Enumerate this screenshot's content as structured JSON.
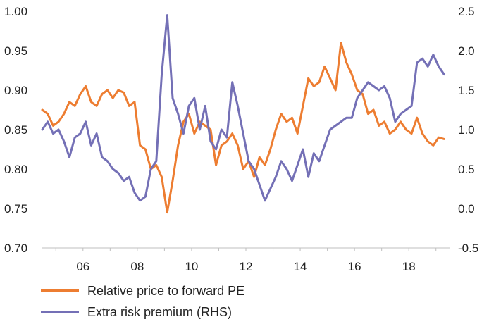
{
  "chart_data": {
    "type": "line",
    "x_ticks": [
      {
        "x": 2006,
        "label": "06"
      },
      {
        "x": 2008,
        "label": "08"
      },
      {
        "x": 2010,
        "label": "10"
      },
      {
        "x": 2012,
        "label": "12"
      },
      {
        "x": 2014,
        "label": "14"
      },
      {
        "x": 2016,
        "label": "16"
      },
      {
        "x": 2018,
        "label": "18"
      }
    ],
    "xlim": [
      2004.5,
      2019.5
    ],
    "y_left": {
      "ylim": [
        0.7,
        1.0
      ],
      "ticks": [
        "1.00",
        "0.95",
        "0.90",
        "0.85",
        "0.80",
        "0.75",
        "0.70"
      ]
    },
    "y_right": {
      "ylim": [
        -0.5,
        2.5
      ],
      "ticks": [
        "2.5",
        "2.0",
        "1.5",
        "1.0",
        "0.5",
        "0.0",
        "-0.5"
      ]
    },
    "grid": false,
    "legend_position": "bottom-left",
    "series": [
      {
        "name": "Relative price to forward PE",
        "axis": "left",
        "color": "#ed7d31",
        "x": [
          2004.5,
          2004.7,
          2004.9,
          2005.1,
          2005.3,
          2005.5,
          2005.7,
          2005.9,
          2006.1,
          2006.3,
          2006.5,
          2006.7,
          2006.9,
          2007.1,
          2007.3,
          2007.5,
          2007.7,
          2007.9,
          2008.1,
          2008.3,
          2008.5,
          2008.7,
          2008.9,
          2009.1,
          2009.3,
          2009.5,
          2009.7,
          2009.9,
          2010.1,
          2010.3,
          2010.5,
          2010.7,
          2010.9,
          2011.1,
          2011.3,
          2011.5,
          2011.7,
          2011.9,
          2012.1,
          2012.3,
          2012.5,
          2012.7,
          2012.9,
          2013.1,
          2013.3,
          2013.5,
          2013.7,
          2013.9,
          2014.1,
          2014.3,
          2014.5,
          2014.7,
          2014.9,
          2015.1,
          2015.3,
          2015.5,
          2015.7,
          2015.9,
          2016.1,
          2016.3,
          2016.5,
          2016.7,
          2016.9,
          2017.1,
          2017.3,
          2017.5,
          2017.7,
          2017.9,
          2018.1,
          2018.3,
          2018.5,
          2018.7,
          2018.9,
          2019.1,
          2019.3
        ],
        "values": [
          0.875,
          0.87,
          0.855,
          0.86,
          0.87,
          0.885,
          0.88,
          0.895,
          0.905,
          0.885,
          0.88,
          0.895,
          0.9,
          0.89,
          0.9,
          0.897,
          0.88,
          0.885,
          0.83,
          0.825,
          0.8,
          0.805,
          0.79,
          0.745,
          0.785,
          0.83,
          0.86,
          0.87,
          0.845,
          0.86,
          0.855,
          0.85,
          0.805,
          0.83,
          0.835,
          0.845,
          0.83,
          0.8,
          0.81,
          0.79,
          0.815,
          0.805,
          0.825,
          0.85,
          0.87,
          0.86,
          0.865,
          0.845,
          0.88,
          0.915,
          0.905,
          0.91,
          0.93,
          0.915,
          0.9,
          0.96,
          0.935,
          0.92,
          0.9,
          0.895,
          0.87,
          0.875,
          0.855,
          0.86,
          0.845,
          0.85,
          0.86,
          0.85,
          0.845,
          0.865,
          0.845,
          0.835,
          0.83,
          0.84,
          0.838
        ]
      },
      {
        "name": "Extra risk premium (RHS)",
        "axis": "right",
        "color": "#7470b6",
        "x": [
          2004.5,
          2004.7,
          2004.9,
          2005.1,
          2005.3,
          2005.5,
          2005.7,
          2005.9,
          2006.1,
          2006.3,
          2006.5,
          2006.7,
          2006.9,
          2007.1,
          2007.3,
          2007.5,
          2007.7,
          2007.9,
          2008.1,
          2008.3,
          2008.5,
          2008.7,
          2008.9,
          2009.1,
          2009.3,
          2009.5,
          2009.7,
          2009.9,
          2010.1,
          2010.3,
          2010.5,
          2010.7,
          2010.9,
          2011.1,
          2011.3,
          2011.5,
          2011.7,
          2011.9,
          2012.1,
          2012.3,
          2012.5,
          2012.7,
          2012.9,
          2013.1,
          2013.3,
          2013.5,
          2013.7,
          2013.9,
          2014.1,
          2014.3,
          2014.5,
          2014.7,
          2014.9,
          2015.1,
          2015.3,
          2015.5,
          2015.7,
          2015.9,
          2016.1,
          2016.3,
          2016.5,
          2016.7,
          2016.9,
          2017.1,
          2017.3,
          2017.5,
          2017.7,
          2017.9,
          2018.1,
          2018.3,
          2018.5,
          2018.7,
          2018.9,
          2019.1,
          2019.3
        ],
        "values": [
          1.0,
          1.1,
          0.95,
          1.0,
          0.85,
          0.65,
          0.9,
          0.95,
          1.1,
          0.8,
          0.95,
          0.65,
          0.6,
          0.5,
          0.45,
          0.35,
          0.4,
          0.2,
          0.1,
          0.15,
          0.5,
          0.6,
          1.7,
          2.45,
          1.4,
          1.2,
          0.95,
          1.3,
          1.4,
          1.0,
          1.3,
          0.85,
          0.75,
          1.0,
          0.9,
          1.6,
          1.3,
          0.95,
          0.6,
          0.5,
          0.3,
          0.1,
          0.25,
          0.4,
          0.6,
          0.5,
          0.35,
          0.55,
          0.75,
          0.4,
          0.7,
          0.6,
          0.8,
          1.0,
          1.05,
          1.1,
          1.15,
          1.15,
          1.4,
          1.5,
          1.6,
          1.55,
          1.5,
          1.55,
          1.4,
          1.1,
          1.2,
          1.25,
          1.3,
          1.85,
          1.9,
          1.8,
          1.95,
          1.8,
          1.7
        ]
      }
    ]
  }
}
